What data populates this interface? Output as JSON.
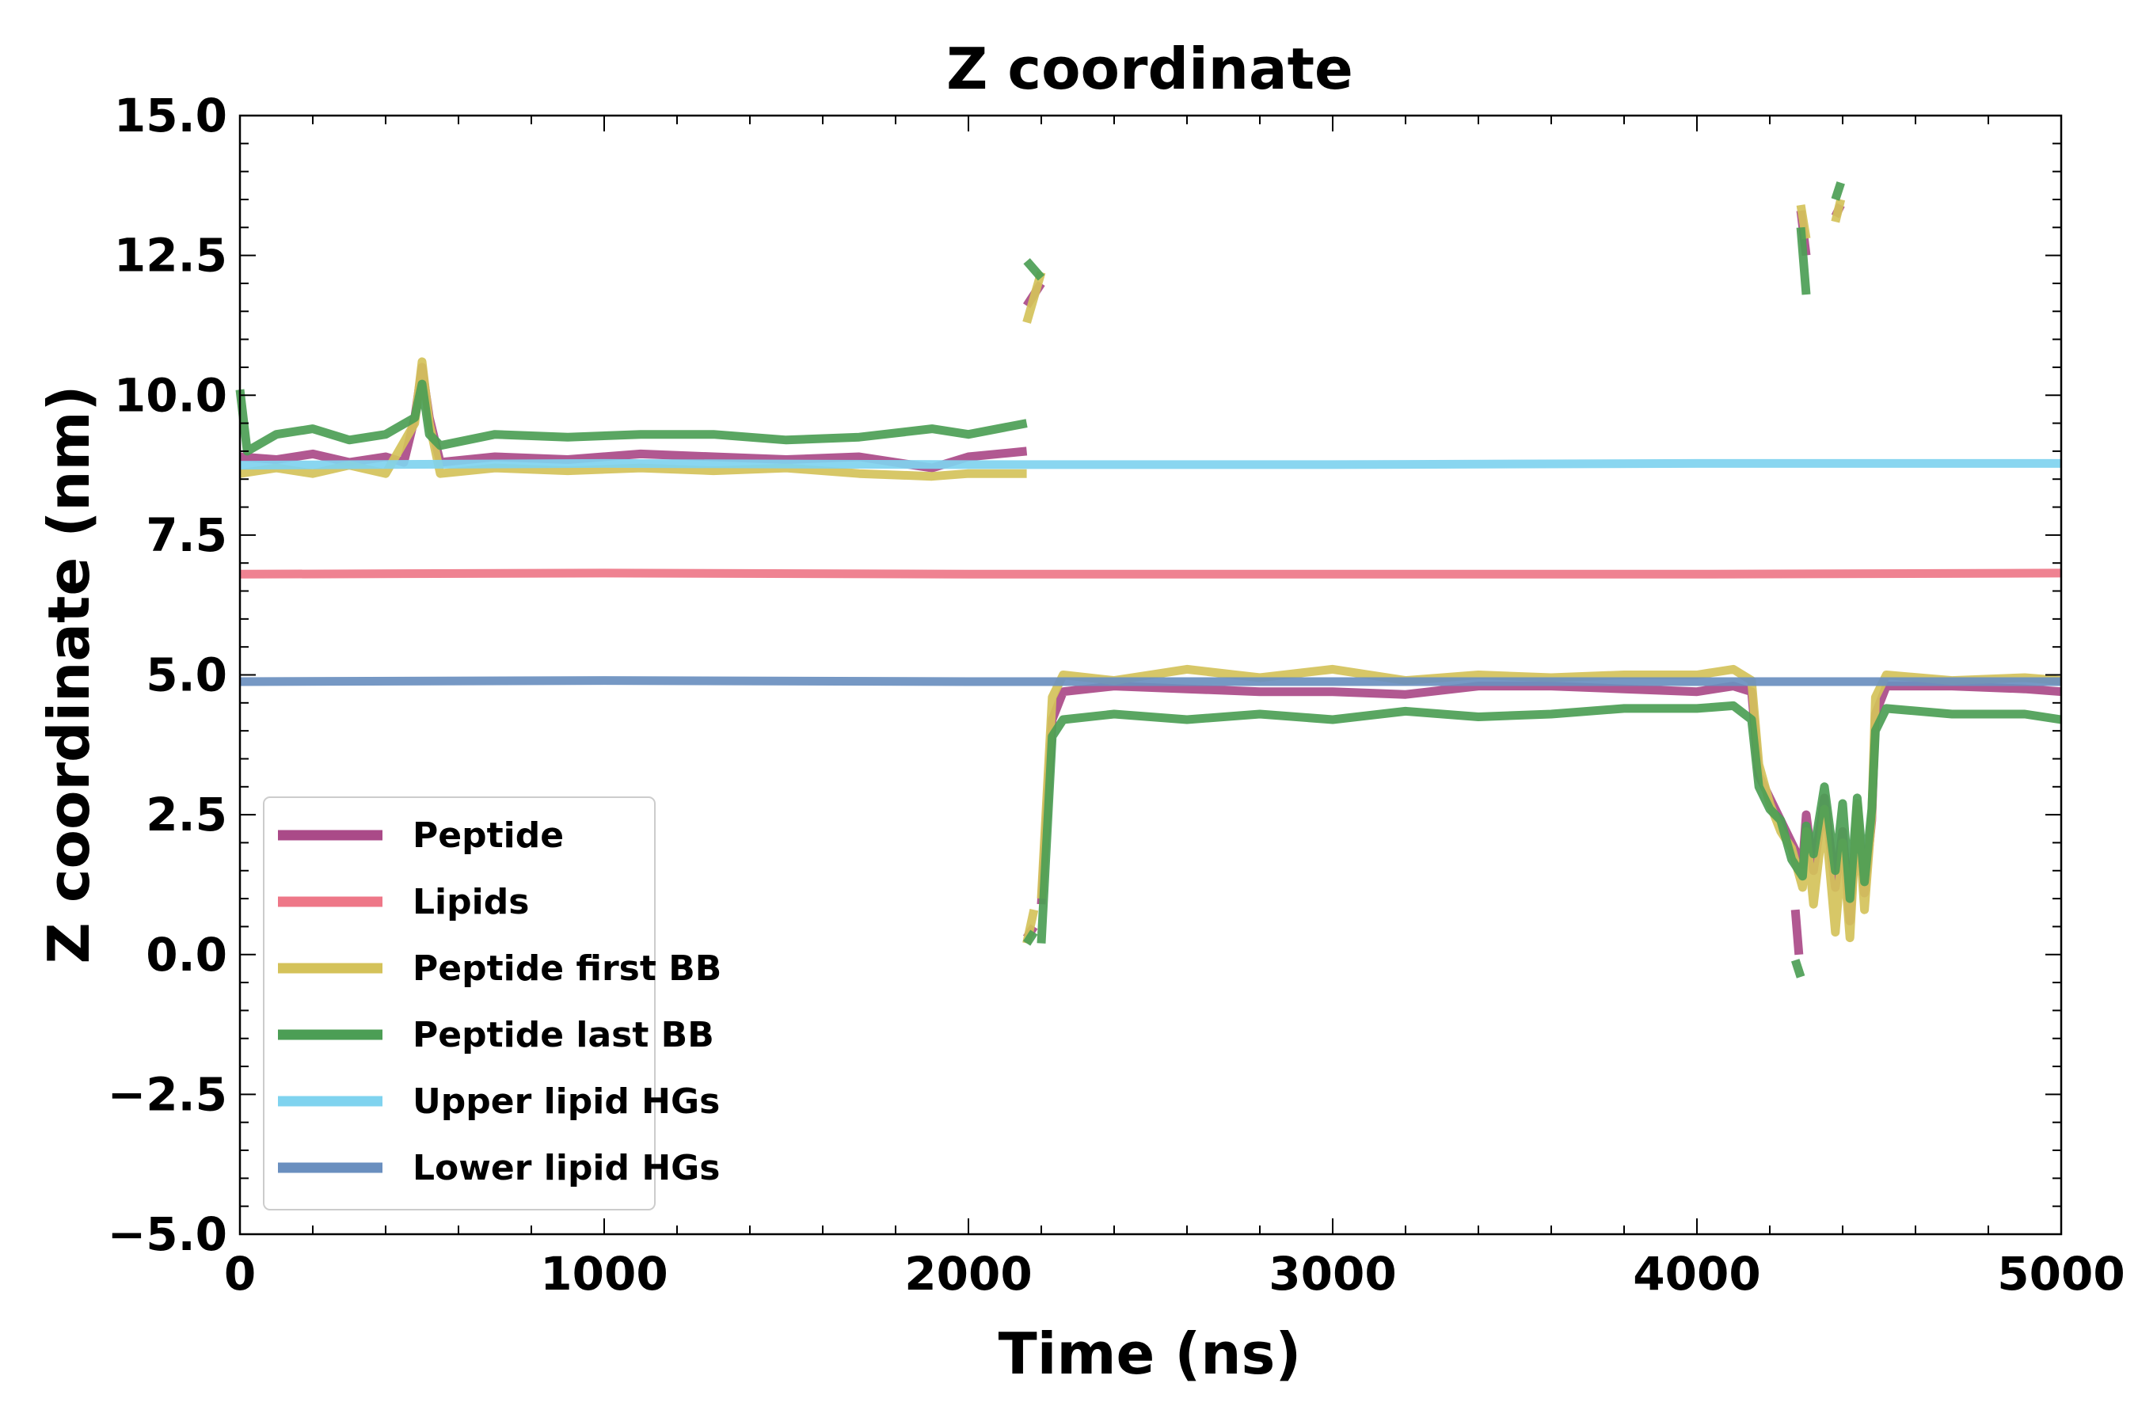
{
  "chart_data": {
    "type": "line",
    "title": "Z coordinate",
    "xlabel": "Time (ns)",
    "ylabel": "Z coordinate (nm)",
    "xlim": [
      0,
      5000
    ],
    "ylim": [
      -5.0,
      15.0
    ],
    "xticks": [
      0,
      1000,
      2000,
      3000,
      4000,
      5000
    ],
    "xtick_labels": [
      "0",
      "1000",
      "2000",
      "3000",
      "4000",
      "5000"
    ],
    "yticks": [
      -5.0,
      -2.5,
      0.0,
      2.5,
      5.0,
      7.5,
      10.0,
      12.5,
      15.0
    ],
    "ytick_labels": [
      "−5.0",
      "−2.5",
      "0.0",
      "2.5",
      "5.0",
      "7.5",
      "10.0",
      "12.5",
      "15.0"
    ],
    "grid": false,
    "legend_position": "lower-left",
    "series": [
      {
        "name": "Peptide",
        "color": "#aa4a88",
        "segments": [
          [
            [
              0,
              8.9
            ],
            [
              100,
              8.85
            ],
            [
              200,
              8.95
            ],
            [
              300,
              8.8
            ],
            [
              400,
              8.9
            ],
            [
              450,
              8.8
            ],
            [
              480,
              9.6
            ],
            [
              500,
              10.5
            ],
            [
              520,
              9.6
            ],
            [
              550,
              8.8
            ],
            [
              700,
              8.9
            ],
            [
              900,
              8.85
            ],
            [
              1100,
              8.95
            ],
            [
              1300,
              8.9
            ],
            [
              1500,
              8.85
            ],
            [
              1700,
              8.9
            ],
            [
              1900,
              8.7
            ],
            [
              2000,
              8.9
            ],
            [
              2160,
              9.0
            ]
          ],
          [
            [
              2160,
              0.3
            ],
            [
              2180,
              0.5
            ]
          ],
          [
            [
              2160,
              11.6
            ],
            [
              2200,
              12.0
            ]
          ],
          [
            [
              2200,
              0.9
            ],
            [
              2230,
              4.2
            ],
            [
              2260,
              4.7
            ],
            [
              2400,
              4.8
            ],
            [
              2600,
              4.75
            ],
            [
              2800,
              4.7
            ],
            [
              3000,
              4.7
            ],
            [
              3200,
              4.65
            ],
            [
              3400,
              4.8
            ],
            [
              3600,
              4.8
            ],
            [
              3800,
              4.75
            ],
            [
              4000,
              4.7
            ],
            [
              4100,
              4.8
            ],
            [
              4150,
              4.7
            ],
            [
              4170,
              3.2
            ],
            [
              4200,
              2.8
            ],
            [
              4230,
              2.4
            ],
            [
              4260,
              2.0
            ],
            [
              4290,
              1.6
            ],
            [
              4300,
              2.5
            ],
            [
              4320,
              1.5
            ],
            [
              4350,
              2.8
            ],
            [
              4380,
              1.2
            ],
            [
              4400,
              2.2
            ],
            [
              4420,
              0.6
            ],
            [
              4440,
              2.6
            ],
            [
              4460,
              1.1
            ],
            [
              4480,
              2.4
            ],
            [
              4490,
              4.3
            ],
            [
              4520,
              4.8
            ],
            [
              4700,
              4.8
            ],
            [
              4900,
              4.75
            ],
            [
              5000,
              4.7
            ]
          ],
          [
            [
              4285,
              13.3
            ],
            [
              4300,
              12.5
            ]
          ],
          [
            [
              4380,
              13.2
            ],
            [
              4395,
              13.4
            ]
          ],
          [
            [
              4270,
              0.8
            ],
            [
              4280,
              0.0
            ]
          ]
        ]
      },
      {
        "name": "Lipids",
        "color": "#ee7788",
        "segments": [
          [
            [
              0,
              6.8
            ],
            [
              1000,
              6.82
            ],
            [
              2000,
              6.8
            ],
            [
              3000,
              6.8
            ],
            [
              4000,
              6.8
            ],
            [
              5000,
              6.82
            ]
          ]
        ]
      },
      {
        "name": "Peptide first BB",
        "color": "#d4c25a",
        "segments": [
          [
            [
              0,
              8.6
            ],
            [
              100,
              8.7
            ],
            [
              200,
              8.6
            ],
            [
              300,
              8.75
            ],
            [
              400,
              8.6
            ],
            [
              480,
              9.5
            ],
            [
              500,
              10.6
            ],
            [
              520,
              9.5
            ],
            [
              550,
              8.6
            ],
            [
              700,
              8.7
            ],
            [
              900,
              8.65
            ],
            [
              1100,
              8.7
            ],
            [
              1300,
              8.65
            ],
            [
              1500,
              8.7
            ],
            [
              1700,
              8.6
            ],
            [
              1900,
              8.55
            ],
            [
              2000,
              8.6
            ],
            [
              2160,
              8.6
            ]
          ],
          [
            [
              2160,
              0.2
            ],
            [
              2180,
              0.8
            ]
          ],
          [
            [
              2160,
              11.3
            ],
            [
              2200,
              12.2
            ]
          ],
          [
            [
              2200,
              1.0
            ],
            [
              2230,
              4.6
            ],
            [
              2260,
              5.0
            ],
            [
              2400,
              4.9
            ],
            [
              2600,
              5.1
            ],
            [
              2800,
              4.95
            ],
            [
              3000,
              5.1
            ],
            [
              3200,
              4.9
            ],
            [
              3400,
              5.0
            ],
            [
              3600,
              4.95
            ],
            [
              3800,
              5.0
            ],
            [
              4000,
              5.0
            ],
            [
              4100,
              5.1
            ],
            [
              4150,
              4.9
            ],
            [
              4170,
              3.4
            ],
            [
              4200,
              2.7
            ],
            [
              4230,
              2.2
            ],
            [
              4260,
              1.9
            ],
            [
              4290,
              1.2
            ],
            [
              4300,
              2.2
            ],
            [
              4320,
              0.9
            ],
            [
              4350,
              2.6
            ],
            [
              4380,
              0.4
            ],
            [
              4400,
              2.0
            ],
            [
              4420,
              0.3
            ],
            [
              4440,
              2.7
            ],
            [
              4460,
              0.8
            ],
            [
              4480,
              2.5
            ],
            [
              4490,
              4.6
            ],
            [
              4520,
              5.0
            ],
            [
              4700,
              4.9
            ],
            [
              4900,
              4.95
            ],
            [
              5000,
              4.9
            ]
          ],
          [
            [
              4285,
              13.4
            ],
            [
              4300,
              12.8
            ]
          ],
          [
            [
              4380,
              13.1
            ],
            [
              4395,
              13.5
            ]
          ]
        ]
      },
      {
        "name": "Peptide last BB",
        "color": "#4c9e55",
        "segments": [
          [
            [
              0,
              10.1
            ],
            [
              20,
              9.0
            ],
            [
              100,
              9.3
            ],
            [
              200,
              9.4
            ],
            [
              300,
              9.2
            ],
            [
              400,
              9.3
            ],
            [
              480,
              9.6
            ],
            [
              500,
              10.2
            ],
            [
              520,
              9.3
            ],
            [
              550,
              9.1
            ],
            [
              700,
              9.3
            ],
            [
              900,
              9.25
            ],
            [
              1100,
              9.3
            ],
            [
              1300,
              9.3
            ],
            [
              1500,
              9.2
            ],
            [
              1700,
              9.25
            ],
            [
              1900,
              9.4
            ],
            [
              2000,
              9.3
            ],
            [
              2160,
              9.5
            ]
          ],
          [
            [
              2160,
              0.2
            ],
            [
              2180,
              0.4
            ]
          ],
          [
            [
              2160,
              12.4
            ],
            [
              2200,
              12.1
            ]
          ],
          [
            [
              2200,
              0.2
            ],
            [
              2230,
              3.9
            ],
            [
              2260,
              4.2
            ],
            [
              2400,
              4.3
            ],
            [
              2600,
              4.2
            ],
            [
              2800,
              4.3
            ],
            [
              3000,
              4.2
            ],
            [
              3200,
              4.35
            ],
            [
              3400,
              4.25
            ],
            [
              3600,
              4.3
            ],
            [
              3800,
              4.4
            ],
            [
              4000,
              4.4
            ],
            [
              4100,
              4.45
            ],
            [
              4150,
              4.2
            ],
            [
              4170,
              3.0
            ],
            [
              4200,
              2.6
            ],
            [
              4230,
              2.4
            ],
            [
              4260,
              1.7
            ],
            [
              4290,
              1.4
            ],
            [
              4300,
              2.3
            ],
            [
              4320,
              1.8
            ],
            [
              4350,
              3.0
            ],
            [
              4380,
              1.5
            ],
            [
              4400,
              2.7
            ],
            [
              4420,
              1.0
            ],
            [
              4440,
              2.8
            ],
            [
              4460,
              1.3
            ],
            [
              4480,
              2.6
            ],
            [
              4490,
              4.0
            ],
            [
              4520,
              4.4
            ],
            [
              4700,
              4.3
            ],
            [
              4900,
              4.3
            ],
            [
              5000,
              4.2
            ]
          ],
          [
            [
              4285,
              13.0
            ],
            [
              4300,
              11.8
            ]
          ],
          [
            [
              4380,
              13.5
            ],
            [
              4395,
              13.8
            ]
          ],
          [
            [
              4270,
              -0.1
            ],
            [
              4285,
              -0.4
            ]
          ]
        ]
      },
      {
        "name": "Upper lipid HGs",
        "color": "#7fd3ef",
        "segments": [
          [
            [
              0,
              8.75
            ],
            [
              1000,
              8.78
            ],
            [
              2000,
              8.76
            ],
            [
              3000,
              8.76
            ],
            [
              4000,
              8.78
            ],
            [
              5000,
              8.78
            ]
          ]
        ]
      },
      {
        "name": "Lower lipid HGs",
        "color": "#6a8fbf",
        "segments": [
          [
            [
              0,
              4.88
            ],
            [
              1000,
              4.9
            ],
            [
              2000,
              4.88
            ],
            [
              3000,
              4.88
            ],
            [
              4000,
              4.88
            ],
            [
              5000,
              4.88
            ]
          ]
        ]
      }
    ]
  }
}
